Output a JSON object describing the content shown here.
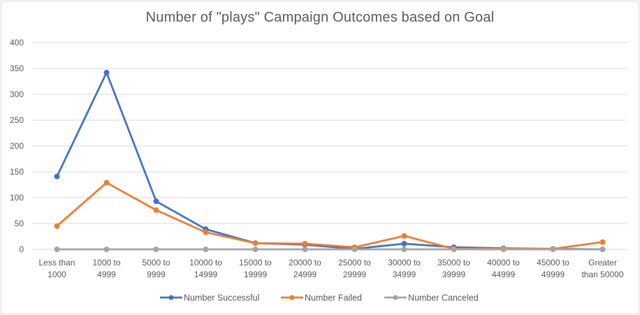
{
  "chart_data": {
    "type": "line",
    "title": "Number of \"plays\" Campaign Outcomes based on Goal",
    "xlabel": "",
    "ylabel": "",
    "ylim": [
      0,
      400
    ],
    "yticks": [
      0,
      50,
      100,
      150,
      200,
      250,
      300,
      350,
      400
    ],
    "grid": true,
    "legend_position": "bottom",
    "categories": [
      [
        "Less than",
        "1000"
      ],
      [
        "1000 to",
        "4999"
      ],
      [
        "5000 to",
        "9999"
      ],
      [
        "10000 to",
        "14999"
      ],
      [
        "15000 to",
        "19999"
      ],
      [
        "20000 to",
        "24999"
      ],
      [
        "25000 to",
        "29999"
      ],
      [
        "30000 to",
        "34999"
      ],
      [
        "35000 to",
        "39999"
      ],
      [
        "40000 to",
        "44999"
      ],
      [
        "45000 to",
        "49999"
      ],
      [
        "Greater",
        "than 50000"
      ]
    ],
    "series": [
      {
        "name": "Number Successful",
        "color": "#4472c4",
        "values": [
          141,
          342,
          93,
          39,
          12,
          9,
          1,
          11,
          4,
          2,
          1,
          0
        ]
      },
      {
        "name": "Number Failed",
        "color": "#ed7d31",
        "values": [
          45,
          129,
          76,
          33,
          12,
          11,
          4,
          26,
          1,
          1,
          1,
          14
        ]
      },
      {
        "name": "Number Canceled",
        "color": "#a5a5a5",
        "values": [
          0,
          0,
          0,
          0,
          0,
          0,
          0,
          0,
          0,
          0,
          0,
          0
        ]
      }
    ]
  }
}
